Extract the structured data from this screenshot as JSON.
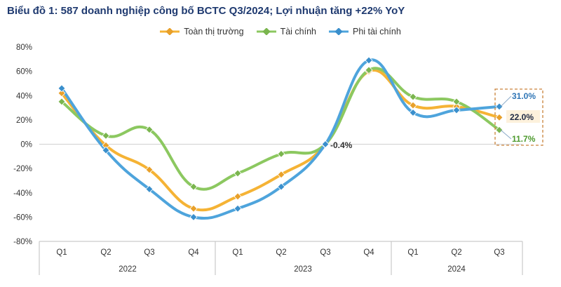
{
  "chart_data": {
    "type": "line",
    "title": "Biểu đồ 1: 587 doanh nghiệp công bố BCTC Q3/2024; Lợi nhuận tăng +22% YoY",
    "categories": [
      "Q1",
      "Q2",
      "Q3",
      "Q4",
      "Q1",
      "Q2",
      "Q3",
      "Q4",
      "Q1",
      "Q2",
      "Q3"
    ],
    "groups": [
      {
        "label": "2022",
        "count": 4
      },
      {
        "label": "2023",
        "count": 4
      },
      {
        "label": "2024",
        "count": 3
      }
    ],
    "yticks": [
      "80%",
      "60%",
      "40%",
      "20%",
      "0%",
      "-20%",
      "-40%",
      "-60%",
      "-80%"
    ],
    "ylim": [
      -80,
      80
    ],
    "series": [
      {
        "name": "Toàn thị trường",
        "color": "#f5b335",
        "marker": "#e8a02a",
        "values": [
          42,
          -1,
          -21,
          -53,
          -43,
          -25,
          -0.4,
          60,
          32,
          31,
          22
        ]
      },
      {
        "name": "Tài chính",
        "color": "#8cc860",
        "marker": "#7ab54e",
        "values": [
          35,
          7,
          12,
          -35,
          -24,
          -8,
          0,
          61,
          39,
          35,
          11.7
        ]
      },
      {
        "name": "Phi tài chính",
        "color": "#4ea4dc",
        "marker": "#3a8fcc",
        "values": [
          46,
          -5,
          -37,
          -60,
          -53,
          -35,
          0,
          69,
          26,
          28,
          31
        ]
      }
    ],
    "annotations": [
      {
        "text": "-0.4%",
        "color": "#333333"
      },
      {
        "text": "31.0%",
        "color": "#2e75b6"
      },
      {
        "text": "22.0%",
        "color": "#1f2a44"
      },
      {
        "text": "11.7%",
        "color": "#4e9a2e"
      }
    ]
  }
}
